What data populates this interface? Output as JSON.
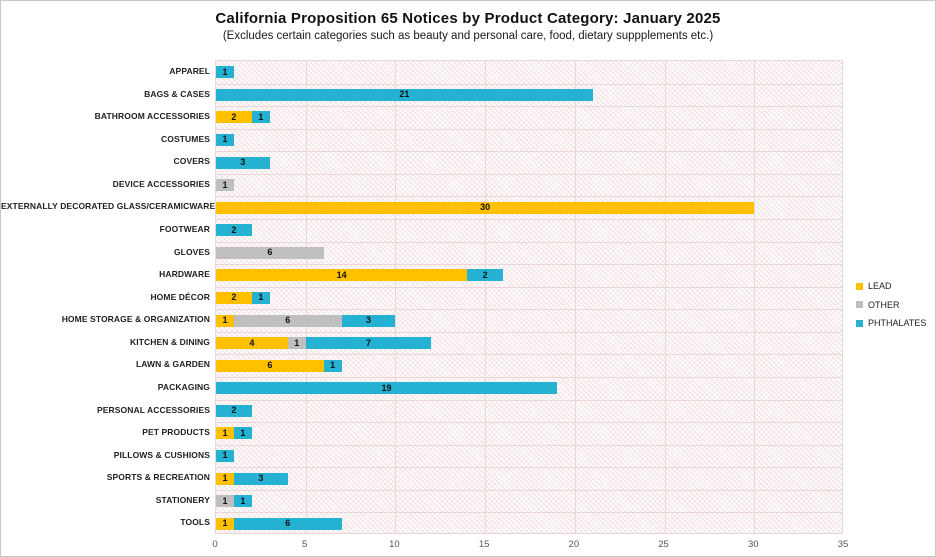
{
  "header": {
    "title": "California Proposition 65 Notices by Product Category: January 2025",
    "subtitle": "(Excludes certain categories such as beauty and personal care, food, dietary suppplements etc.)"
  },
  "legend": {
    "position": "right",
    "items": [
      {
        "label": "LEAD",
        "color": "#FFC000"
      },
      {
        "label": "OTHER",
        "color": "#BFBFBF"
      },
      {
        "label": "PHTHALATES",
        "color": "#25B2D2"
      }
    ]
  },
  "chart_data": {
    "type": "bar",
    "orientation": "horizontal",
    "stacked": true,
    "title": "California Proposition 65 Notices by Product Category: January 2025",
    "subtitle": "(Excludes certain categories such as beauty and personal care, food, dietary suppplements etc.)",
    "xlabel": "",
    "ylabel": "",
    "xlim": [
      0,
      35
    ],
    "x_ticks": [
      0,
      5,
      10,
      15,
      20,
      25,
      30,
      35
    ],
    "grid": true,
    "data_labels": true,
    "legend_position": "right",
    "categories": [
      "APPAREL",
      "BAGS & CASES",
      "BATHROOM ACCESSORIES",
      "COSTUMES",
      "COVERS",
      "DEVICE ACCESSORIES",
      "EXTERNALLY DECORATED GLASS/CERAMICWARE",
      "FOOTWEAR",
      "GLOVES",
      "HARDWARE",
      "HOME DÉCOR",
      "HOME STORAGE & ORGANIZATION",
      "KITCHEN & DINING",
      "LAWN & GARDEN",
      "PACKAGING",
      "PERSONAL ACCESSORIES",
      "PET PRODUCTS",
      "PILLOWS & CUSHIONS",
      "SPORTS & RECREATION",
      "STATIONERY",
      "TOOLS"
    ],
    "series": [
      {
        "name": "LEAD",
        "color": "#FFC000",
        "values": [
          0,
          0,
          2,
          0,
          0,
          0,
          30,
          0,
          0,
          14,
          2,
          1,
          4,
          6,
          0,
          0,
          1,
          0,
          1,
          0,
          1
        ]
      },
      {
        "name": "OTHER",
        "color": "#BFBFBF",
        "values": [
          0,
          0,
          0,
          0,
          0,
          1,
          0,
          0,
          6,
          0,
          0,
          6,
          1,
          0,
          0,
          0,
          0,
          0,
          0,
          1,
          0
        ]
      },
      {
        "name": "PHTHALATES",
        "color": "#25B2D2",
        "values": [
          1,
          21,
          1,
          1,
          3,
          0,
          0,
          2,
          0,
          2,
          1,
          3,
          7,
          1,
          19,
          2,
          1,
          1,
          3,
          1,
          6
        ]
      }
    ]
  }
}
